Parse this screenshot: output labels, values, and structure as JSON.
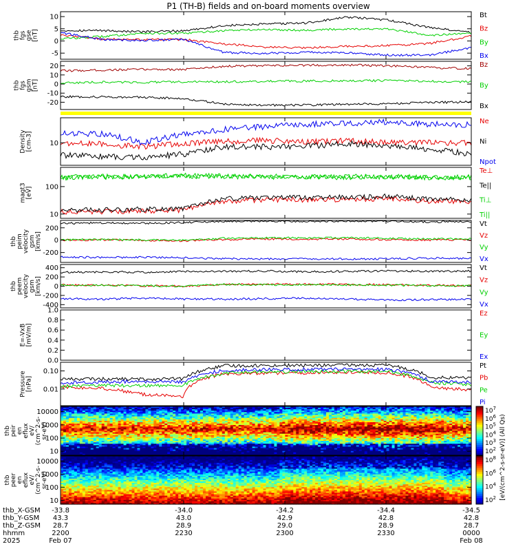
{
  "title": "P1 (TH-B) fields and on-board moments overview",
  "colors": {
    "black": "#000000",
    "red": "#e60000",
    "green": "#00d000",
    "blue": "#0000ee",
    "darkred": "#a00000",
    "yellow": "#ffff00"
  },
  "chart_data": [
    {
      "id": "fgs_gse",
      "type": "line",
      "ylabel": [
        "thb",
        "fgs",
        "gse",
        "[nT]"
      ],
      "yticks": [
        "10",
        "5",
        "0",
        "-5"
      ],
      "ylim": [
        -7.5,
        12
      ],
      "series": [
        {
          "name": "Bt",
          "color": "black",
          "values": [
            4.3,
            4.3,
            3.7,
            4.2,
            6.3,
            6.9,
            7.4,
            9.8,
            8.5,
            5.5,
            3.5
          ]
        },
        {
          "name": "Bz",
          "color": "red",
          "values": [
            2.4,
            0.8,
            0.6,
            0.6,
            -1.2,
            -2.5,
            -2.8,
            -2.2,
            -1.9,
            -1.0,
            2.0
          ]
        },
        {
          "name": "By",
          "color": "green",
          "values": [
            0.9,
            1.8,
            3.2,
            3.1,
            4.3,
            4.7,
            4.4,
            5.0,
            4.8,
            2.4,
            3.0
          ]
        },
        {
          "name": "Bx",
          "color": "blue",
          "values": [
            3.4,
            0.6,
            0.2,
            0.6,
            -4.8,
            -5.0,
            -4.6,
            -4.9,
            -5.8,
            -5.8,
            -2.7
          ]
        }
      ]
    },
    {
      "id": "fgs_gsm",
      "type": "line",
      "ylabel": [
        "thb",
        "fgs",
        "gsm",
        "[nT]"
      ],
      "yticks": [
        "20",
        "10",
        "0",
        "-10",
        "-20"
      ],
      "ylim": [
        -28,
        25
      ],
      "series": [
        {
          "name": "Bz",
          "color": "darkred",
          "values": [
            14.5,
            15.3,
            16.2,
            16.1,
            19.6,
            20.1,
            20.7,
            21.0,
            20.0,
            18.0,
            16.9
          ]
        },
        {
          "name": "By",
          "color": "green",
          "values": [
            1.1,
            2.1,
            1.9,
            2.4,
            2.4,
            3.1,
            3.2,
            3.7,
            3.7,
            3.0,
            2.4
          ]
        },
        {
          "name": "Bx",
          "color": "black",
          "values": [
            -13.9,
            -14.1,
            -14.6,
            -15.9,
            -22.1,
            -23.3,
            -23.1,
            -22.1,
            -21.6,
            -20.3,
            -19.7
          ]
        }
      ]
    },
    {
      "id": "density",
      "type": "line",
      "log": true,
      "ylabel": [
        "Density",
        "[cm-3]"
      ],
      "yticks": [
        "10"
      ],
      "ylim": [
        2,
        60
      ],
      "series": [
        {
          "name": "Ne",
          "color": "red",
          "values": [
            9.6,
            9.2,
            7.4,
            9.4,
            11.1,
            11.8,
            10.5,
            11.5,
            10.1,
            10.1,
            9.7
          ]
        },
        {
          "name": "Ni",
          "color": "black",
          "values": [
            4.1,
            3.8,
            3.5,
            4.4,
            7.6,
            7.4,
            7.9,
            9.3,
            8.3,
            6.1,
            4.5
          ]
        },
        {
          "name": "Npot",
          "color": "blue",
          "values": [
            19,
            19,
            10,
            18,
            26,
            32,
            38,
            40,
            45,
            38,
            36
          ]
        }
      ]
    },
    {
      "id": "temperature",
      "type": "line",
      "log": true,
      "ylabel": [
        "magt3",
        "[eV]"
      ],
      "yticks": [
        "100",
        "10"
      ],
      "ylim": [
        7,
        500
      ],
      "series": [
        {
          "name": "Te⊥",
          "color": "red",
          "values": [
            12,
            12,
            13,
            14,
            29,
            33,
            33,
            34,
            36,
            29,
            28
          ]
        },
        {
          "name": "Te||",
          "color": "black",
          "values": [
            14,
            14,
            15,
            16,
            36,
            40,
            40,
            41,
            44,
            35,
            33
          ]
        },
        {
          "name": "Ti⊥",
          "color": "green",
          "values": [
            220,
            230,
            240,
            250,
            240,
            235,
            230,
            230,
            230,
            225,
            220
          ]
        },
        {
          "name": "Ti||",
          "color": "green",
          "values": [
            210,
            220,
            230,
            240,
            230,
            225,
            220,
            220,
            220,
            215,
            210
          ]
        }
      ]
    },
    {
      "id": "peim_velocity",
      "type": "line",
      "ylabel": [
        "thb",
        "peim",
        "velocity",
        "gsm",
        "[km/s]"
      ],
      "yticks": [
        "200",
        "0",
        "-200"
      ],
      "ylim": [
        -360,
        320
      ],
      "series": [
        {
          "name": "Vt",
          "color": "black",
          "values": [
            270,
            280,
            275,
            285,
            305,
            310,
            305,
            310,
            305,
            295,
            300
          ]
        },
        {
          "name": "Vz",
          "color": "red",
          "values": [
            0,
            5,
            0,
            -10,
            10,
            20,
            15,
            20,
            10,
            0,
            5
          ]
        },
        {
          "name": "Vy",
          "color": "green",
          "values": [
            10,
            10,
            5,
            0,
            30,
            40,
            35,
            40,
            30,
            20,
            20
          ]
        },
        {
          "name": "Vx",
          "color": "blue",
          "values": [
            -270,
            -280,
            -275,
            -285,
            -300,
            -305,
            -300,
            -305,
            -300,
            -290,
            -295
          ]
        }
      ]
    },
    {
      "id": "peem_velocity",
      "type": "line",
      "ylabel": [
        "thb",
        "peem",
        "velocity",
        "gsm",
        "[km/s]"
      ],
      "yticks": [
        "400",
        "200",
        "0",
        "-200",
        "-400"
      ],
      "ylim": [
        -470,
        470
      ],
      "series": [
        {
          "name": "Vt",
          "color": "black",
          "values": [
            300,
            310,
            300,
            320,
            320,
            330,
            310,
            320,
            330,
            320,
            330
          ]
        },
        {
          "name": "Vz",
          "color": "red",
          "values": [
            30,
            20,
            10,
            0,
            40,
            50,
            40,
            40,
            30,
            20,
            10
          ]
        },
        {
          "name": "Vy",
          "color": "green",
          "values": [
            20,
            20,
            10,
            0,
            40,
            30,
            30,
            30,
            20,
            10,
            10
          ]
        },
        {
          "name": "Vx",
          "color": "blue",
          "values": [
            -270,
            -280,
            -260,
            -280,
            -280,
            -270,
            -260,
            -280,
            -300,
            -290,
            -280
          ]
        }
      ]
    },
    {
      "id": "efield",
      "type": "line",
      "ylabel": [
        "E=-VxB",
        "[mV/m]"
      ],
      "yticks": [
        "1.0",
        "0.8",
        "0.6",
        "0.4",
        "0.2",
        "0.0"
      ],
      "ylim": [
        0,
        1
      ],
      "series": [
        {
          "name": "Ez",
          "color": "red",
          "values": []
        },
        {
          "name": "Ey",
          "color": "green",
          "values": []
        },
        {
          "name": "Ex",
          "color": "blue",
          "values": []
        }
      ]
    },
    {
      "id": "pressure",
      "type": "line",
      "log": true,
      "ylabel": [
        "Pressure",
        "[nPa]"
      ],
      "yticks": [
        "0.10",
        "0.01"
      ],
      "ylim": [
        0.0012,
        0.3
      ],
      "series": [
        {
          "name": "Pt",
          "color": "black",
          "values": [
            0.036,
            0.036,
            0.035,
            0.037,
            0.19,
            0.2,
            0.2,
            0.21,
            0.2,
            0.044,
            0.042
          ]
        },
        {
          "name": "Pb",
          "color": "red",
          "values": [
            0.013,
            0.011,
            0.005,
            0.004,
            0.07,
            0.075,
            0.08,
            0.085,
            0.08,
            0.012,
            0.009
          ]
        },
        {
          "name": "Pe",
          "color": "green",
          "values": [
            0.015,
            0.015,
            0.016,
            0.016,
            0.075,
            0.09,
            0.09,
            0.095,
            0.09,
            0.022,
            0.018
          ]
        },
        {
          "name": "Pi",
          "color": "blue",
          "values": [
            0.022,
            0.024,
            0.026,
            0.024,
            0.11,
            0.12,
            0.12,
            0.13,
            0.12,
            0.026,
            0.024
          ]
        }
      ]
    },
    {
      "id": "peir_eflux",
      "type": "heatmap",
      "ylabel": [
        "thb",
        "peir",
        "en",
        "eflux",
        "eV/",
        "(cm^2-s-",
        "sr-eV)"
      ],
      "yticks": [
        "10000",
        "1000",
        "100",
        "10"
      ],
      "ylim": [
        5,
        25000
      ],
      "colorbar": {
        "ticks": [
          "10^7",
          "10^6",
          "10^5",
          "10^4",
          "10^3",
          "10^2"
        ]
      }
    },
    {
      "id": "peer_eflux",
      "type": "heatmap",
      "ylabel": [
        "thb",
        "peer",
        "en",
        "eflux",
        "eV/",
        "(cm^2-s-",
        "sr-eV)"
      ],
      "yticks": [
        "10000",
        "1000",
        "100",
        "10"
      ],
      "ylim": [
        5,
        25000
      ],
      "colorbar": {
        "ticks": [
          "10^8",
          "10^6",
          "10^4",
          "10^2"
        ]
      }
    }
  ],
  "colorbar_label": "[eV/(cm^2-s-sr-eV)] (All Qs)",
  "footer": {
    "rows": [
      {
        "label": "thb_X-GSM",
        "values": [
          "-33.8",
          "-34.0",
          "-34.2",
          "-34.4",
          "-34.5"
        ]
      },
      {
        "label": "thb_Y-GSM",
        "values": [
          "43.3",
          "43.0",
          "42.9",
          "42.8",
          "42.8"
        ]
      },
      {
        "label": "thb_Z-GSM",
        "values": [
          "28.7",
          "28.9",
          "29.0",
          "28.9",
          "28.7"
        ]
      },
      {
        "label": "hhmm",
        "values": [
          "2200",
          "2230",
          "2300",
          "2330",
          "0000"
        ]
      },
      {
        "label": "2025",
        "values": [
          "Feb 07",
          "",
          "",
          "",
          "Feb 08"
        ]
      }
    ]
  }
}
